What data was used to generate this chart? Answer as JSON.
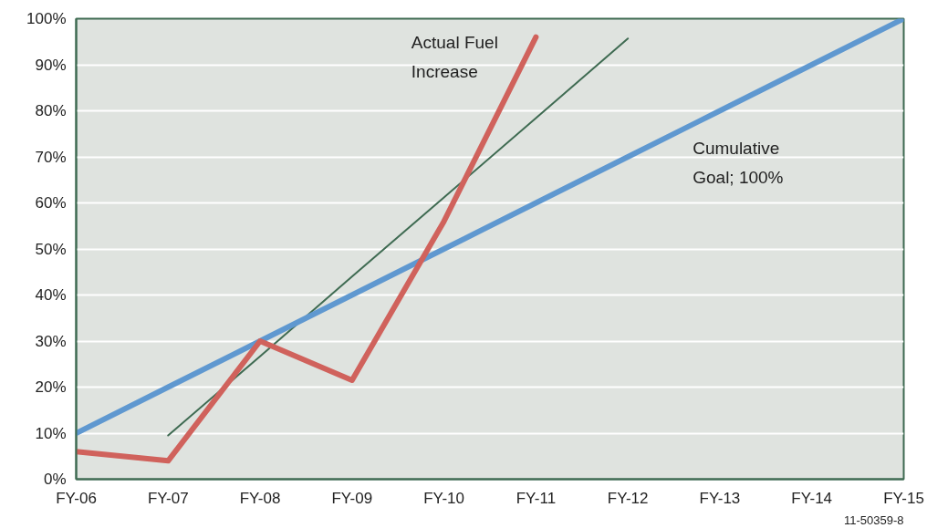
{
  "chart_data": {
    "type": "line",
    "categories": [
      "FY-06",
      "FY-07",
      "FY-08",
      "FY-09",
      "FY-10",
      "FY-11",
      "FY-12",
      "FY-13",
      "FY-14",
      "FY-15"
    ],
    "ylim": [
      0,
      100
    ],
    "yticks": [
      {
        "value": 0,
        "label": "0%"
      },
      {
        "value": 10,
        "label": "10%"
      },
      {
        "value": 20,
        "label": "20%"
      },
      {
        "value": 30,
        "label": "30%"
      },
      {
        "value": 40,
        "label": "40%"
      },
      {
        "value": 50,
        "label": "50%"
      },
      {
        "value": 60,
        "label": "60%"
      },
      {
        "value": 70,
        "label": "70%"
      },
      {
        "value": 80,
        "label": "80%"
      },
      {
        "value": 90,
        "label": "90%"
      },
      {
        "value": 100,
        "label": "100%"
      }
    ],
    "grid": "y",
    "marker": "none",
    "line_style": "solid",
    "series": [
      {
        "color": "#3f6b52",
        "values": [
          null,
          9.5,
          26.7,
          44,
          61.2,
          78.4,
          95.7,
          null,
          null,
          null
        ]
      },
      {
        "color": "#5f98d0",
        "values": [
          10,
          20,
          30,
          40,
          50,
          60,
          70,
          80,
          90,
          100
        ]
      },
      {
        "color": "#d0625c",
        "values": [
          6,
          4,
          30,
          21.5,
          56,
          96,
          null,
          null,
          null,
          null
        ]
      }
    ],
    "annotations": [
      "Actual Fuel\nIncrease",
      "Cumulative\nGoal; 100%",
      "11-50359-8"
    ]
  }
}
